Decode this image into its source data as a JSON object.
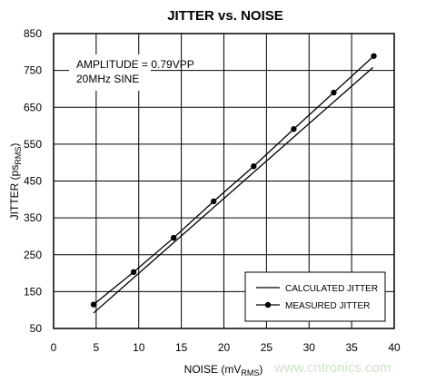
{
  "chart_data": {
    "type": "line",
    "title": "JITTER vs. NOISE",
    "xlabel": {
      "main": "NOISE (mV",
      "sub": "RMS",
      "close": ")"
    },
    "ylabel": {
      "main": "JITTER (ps",
      "sub": "RMS",
      "close": ")"
    },
    "xlim": [
      0,
      40
    ],
    "ylim": [
      50,
      850
    ],
    "xticks": [
      "0",
      "5",
      "10",
      "15",
      "20",
      "25",
      "30",
      "35",
      "40"
    ],
    "yticks": [
      "50",
      "150",
      "250",
      "350",
      "450",
      "550",
      "650",
      "750",
      "850"
    ],
    "grid": true,
    "annotations": [
      "AMPLITUDE = 0.79VPP",
      "20MHz SINE"
    ],
    "legend_position": "bottom-right",
    "series": [
      {
        "name": "CALCULATED JITTER",
        "marker": "none",
        "x": [
          4.7,
          37.5
        ],
        "y": [
          92,
          758
        ]
      },
      {
        "name": "MEASURED JITTER",
        "marker": "circle",
        "x": [
          4.7,
          9.4,
          14.1,
          18.8,
          23.5,
          28.2,
          32.9,
          37.6
        ],
        "y": [
          115,
          203,
          296,
          395,
          490,
          591,
          690,
          789
        ]
      }
    ]
  },
  "watermark": "www.cntronics.com",
  "colors": {
    "line": "#000000",
    "grid": "#000000",
    "watermark": "#cde3c8"
  }
}
